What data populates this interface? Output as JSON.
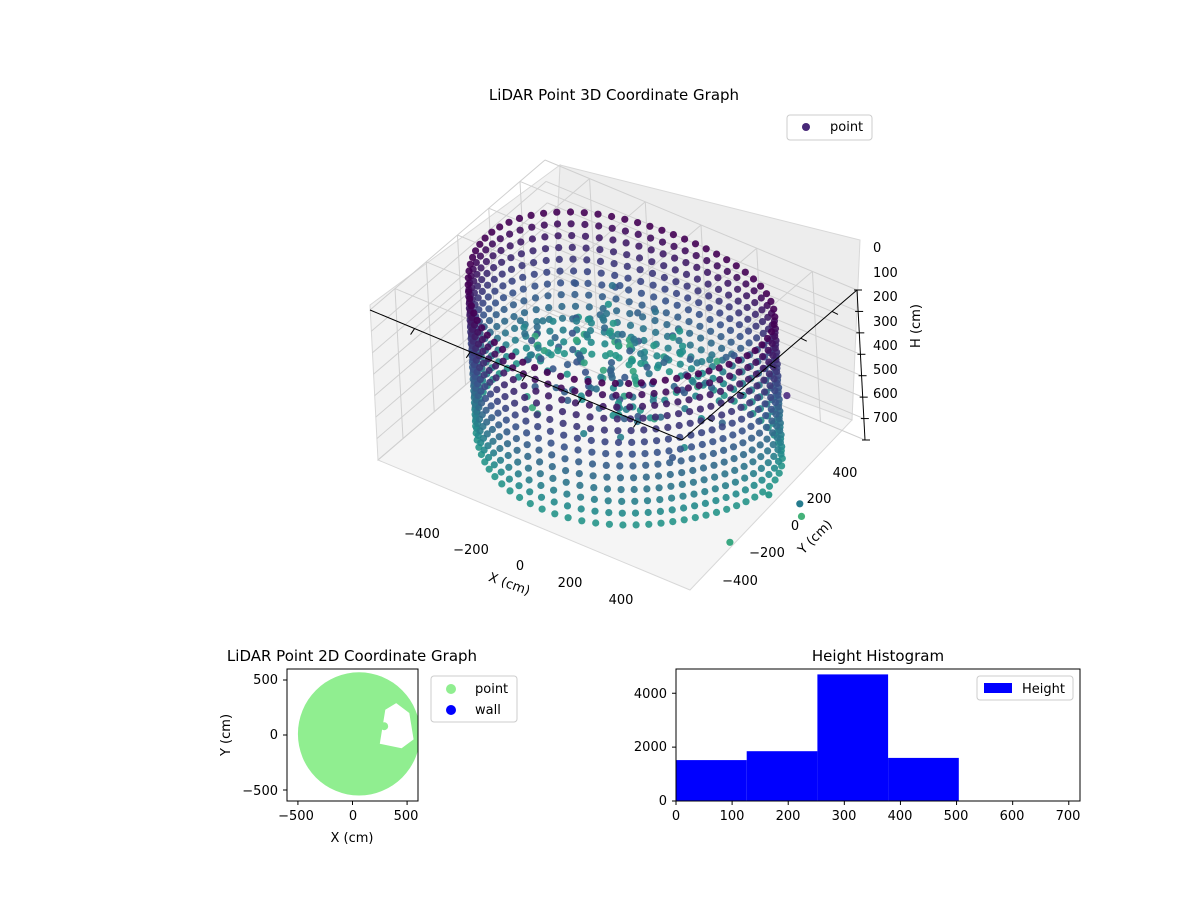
{
  "chart_data": [
    {
      "type": "scatter",
      "projection": "3d",
      "title": "LiDAR Point 3D Coordinate Graph",
      "xlabel": "X (cm)",
      "ylabel": "Y (cm)",
      "zlabel": "H (cm)",
      "x_ticks": [
        "−400",
        "−200",
        "0",
        "200",
        "400"
      ],
      "y_ticks": [
        "−400",
        "−200",
        "0",
        "200",
        "400"
      ],
      "z_ticks": [
        "0",
        "100",
        "200",
        "300",
        "400",
        "500",
        "600",
        "700"
      ],
      "xlim": [
        -560,
        560
      ],
      "ylim": [
        -560,
        560
      ],
      "zlim": [
        0,
        700
      ],
      "z_inverted": true,
      "legend": [
        {
          "label": "point",
          "color": "#482878"
        }
      ],
      "legend_position": "top-right",
      "colormap": "viridis",
      "grid": true,
      "shape": "ring of vertical point columns, radius about 500 cm, height 0–700 cm, with interior clutter",
      "outliers": [
        {
          "x": 480,
          "y": 230,
          "h": 330,
          "color": "#5b3e8b"
        },
        {
          "x": 520,
          "y": 20,
          "h": 640,
          "color": "#2e9a8c"
        },
        {
          "x": 620,
          "y": 40,
          "h": 640,
          "color": "#267c8e"
        },
        {
          "x": 660,
          "y": -20,
          "h": 640,
          "color": "#45b27a"
        },
        {
          "x": 560,
          "y": -300,
          "h": 640,
          "color": "#3aa882"
        }
      ]
    },
    {
      "type": "scatter",
      "title": "LiDAR Point 2D Coordinate Graph",
      "xlabel": "X (cm)",
      "ylabel": "Y (cm)",
      "x_ticks": [
        "−500",
        "0",
        "500"
      ],
      "y_ticks": [
        "−500",
        "0",
        "500"
      ],
      "xlim": [
        -600,
        600
      ],
      "ylim": [
        -600,
        600
      ],
      "legend": [
        {
          "label": "point",
          "color": "#90ee90"
        },
        {
          "label": "wall",
          "color": "#0000ff"
        }
      ],
      "legend_position": "outside-right",
      "shape": "filled disc of radius about 560 cm centred at (60, 10), notch cut out around x 250–520, y −80 to 290",
      "series": [
        {
          "name": "point",
          "values": [
            {
              "x": 290,
              "y": 80
            }
          ]
        },
        {
          "name": "wall",
          "values": []
        }
      ]
    },
    {
      "type": "bar",
      "subtype": "histogram",
      "title": "Height Histogram",
      "bin_edges": [
        0,
        126,
        252,
        378,
        504,
        630,
        700
      ],
      "values": [
        1520,
        1850,
        4700,
        1600,
        0,
        0
      ],
      "x_ticks": [
        "0",
        "100",
        "200",
        "300",
        "400",
        "500",
        "600",
        "700"
      ],
      "y_ticks": [
        "0",
        "2000",
        "4000"
      ],
      "xlim": [
        0,
        720
      ],
      "ylim": [
        0,
        4900
      ],
      "color": "#0000ff",
      "legend": [
        {
          "label": "Height",
          "color": "#0000ff"
        }
      ],
      "legend_position": "top-right"
    }
  ]
}
